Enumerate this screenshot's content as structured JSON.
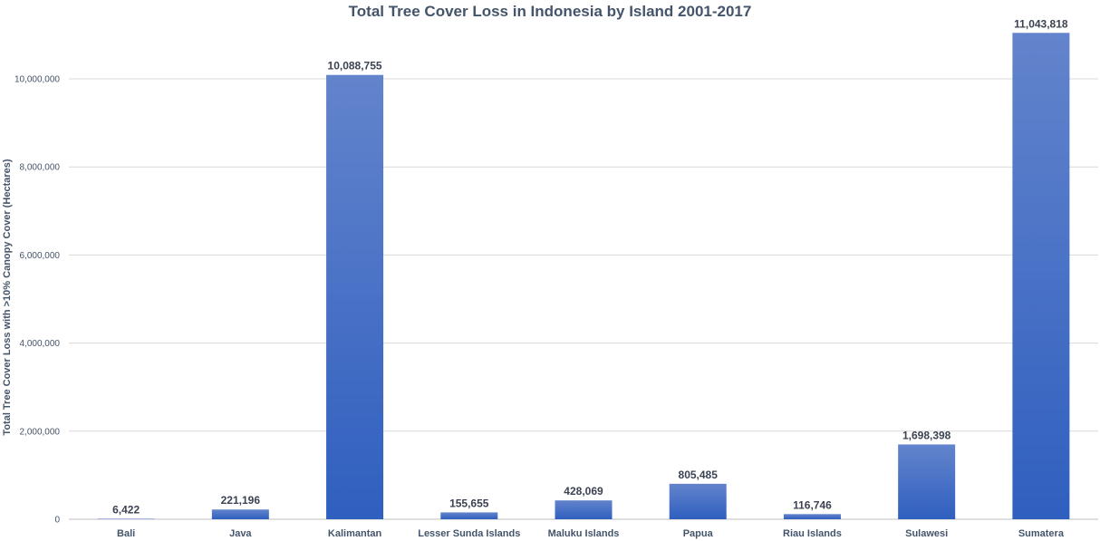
{
  "chart_data": {
    "type": "bar",
    "title": "Total Tree Cover Loss in Indonesia by Island 2001-2017",
    "xlabel": "",
    "ylabel": "Total Tree Cover Loss with >10% Canopy Cover (Hectares)",
    "categories": [
      "Bali",
      "Java",
      "Kalimantan",
      "Lesser Sunda Islands",
      "Maluku Islands",
      "Papua",
      "Riau Islands",
      "Sulawesi",
      "Sumatera"
    ],
    "values": [
      6422,
      221196,
      10088755,
      155655,
      428069,
      805485,
      116746,
      1698398,
      11043818
    ],
    "value_labels": [
      "6,422",
      "221,196",
      "10,088,755",
      "155,655",
      "428,069",
      "805,485",
      "116,746",
      "1,698,398",
      "11,043,818"
    ],
    "ylim": [
      0,
      11500000
    ],
    "yticks": [
      0,
      2000000,
      4000000,
      6000000,
      8000000,
      10000000
    ],
    "ytick_labels": [
      "0",
      "2,000,000",
      "4,000,000",
      "6,000,000",
      "8,000,000",
      "10,000,000"
    ],
    "grid": true,
    "legend": "none",
    "colors": {
      "bar_top": "#6384cc",
      "bar_bottom": "#2f5fbf",
      "text": "#44546a",
      "grid": "#d9d9d9"
    }
  }
}
